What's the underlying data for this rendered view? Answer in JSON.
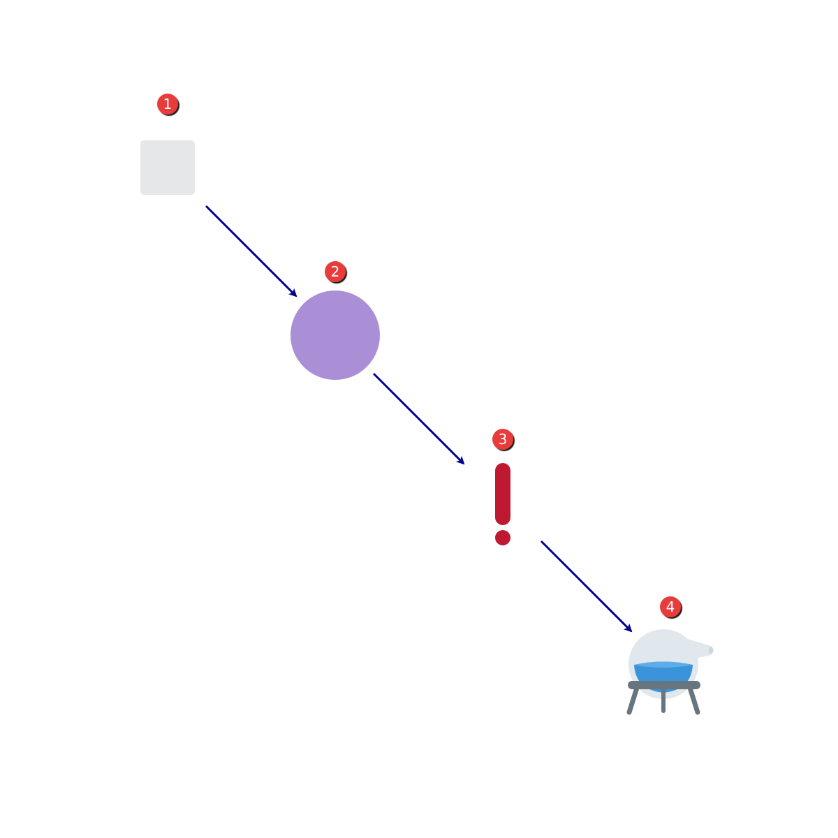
{
  "steps": [
    {
      "number": "1",
      "icon": "white-square-icon"
    },
    {
      "number": "2",
      "icon": "purple-circle-icon"
    },
    {
      "number": "3",
      "icon": "red-exclamation-mark-icon"
    },
    {
      "number": "4",
      "icon": "alembic-icon"
    }
  ],
  "colors": {
    "arrow": "#00008b",
    "badge": "#e83b3b",
    "badge_text": "#ffffff",
    "square": "#e6e7e8",
    "circle": "#aa8ed6",
    "exclamation": "#be1931",
    "alembic_glass": "#e1e8ed",
    "alembic_liquid": "#3b94d9",
    "alembic_stand": "#67757f"
  }
}
